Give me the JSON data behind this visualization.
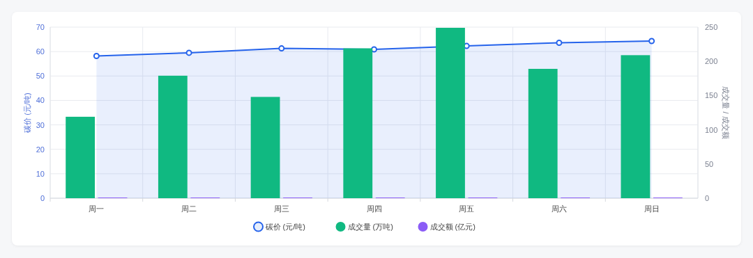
{
  "chart_data": {
    "type": "bar",
    "categories": [
      "周一",
      "周二",
      "周三",
      "周四",
      "周五",
      "周六",
      "周日"
    ],
    "series": [
      {
        "name": "碳价 (元/吨)",
        "type": "area",
        "color": "#2563eb",
        "axis": "y",
        "marker": "circle",
        "values": [
          58.2,
          59.5,
          61.3,
          60.9,
          62.3,
          63.6,
          64.3
        ]
      },
      {
        "name": "成交量 (万吨)",
        "color": "#10b981",
        "axis": "y2",
        "values": [
          119,
          179,
          148,
          219,
          249,
          189,
          209
        ]
      },
      {
        "name": "成交额 (亿元)",
        "color": "#8b5cf6",
        "axis": "y2",
        "values": [
          1,
          1,
          1,
          1,
          1,
          1,
          1
        ]
      }
    ],
    "ylabel": "碳价 (元/吨)",
    "y2label": "成交量 / 成交额",
    "ylim": [
      0,
      70
    ],
    "yticks": [
      0,
      10,
      20,
      30,
      40,
      50,
      60,
      70
    ],
    "y2lim": [
      0,
      250
    ],
    "y2ticks": [
      0,
      50,
      100,
      150,
      200,
      250
    ],
    "grid": true,
    "legend": "bottom"
  }
}
